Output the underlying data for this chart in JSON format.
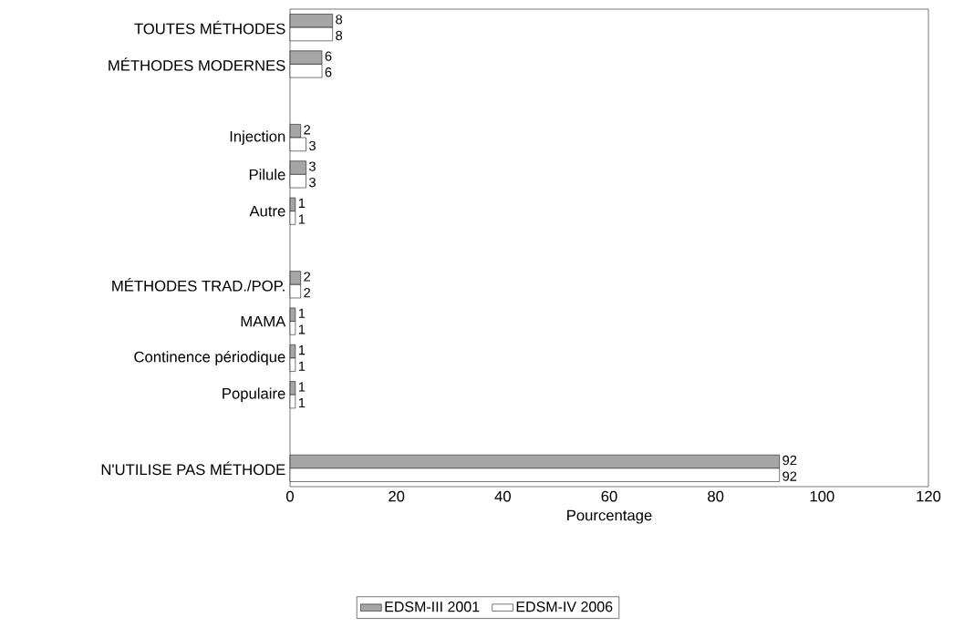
{
  "chart_data": {
    "type": "bar",
    "orientation": "horizontal",
    "categories": [
      "TOUTES MÉTHODES",
      "MÉTHODES MODERNES",
      null,
      "Injection",
      "Pilule",
      "Autre",
      null,
      "MÉTHODES TRAD./POP.",
      "MAMA",
      "Continence périodique",
      "Populaire",
      null,
      "N'UTILISE PAS MÉTHODE"
    ],
    "series": [
      {
        "name": "EDSM-III 2001",
        "color": "#a6a6a6",
        "values": [
          8,
          6,
          null,
          2,
          3,
          1,
          null,
          2,
          1,
          1,
          1,
          null,
          92
        ]
      },
      {
        "name": "EDSM-IV 2006",
        "color": "#ffffff",
        "values": [
          8,
          6,
          null,
          3,
          3,
          1,
          null,
          2,
          1,
          1,
          1,
          null,
          92
        ]
      }
    ],
    "xlabel": "Pourcentage",
    "xlim": [
      0,
      120
    ],
    "xticks": [
      0,
      20,
      40,
      60,
      80,
      100,
      120
    ],
    "data_labels": true,
    "grid": false,
    "legend": "bottom"
  }
}
